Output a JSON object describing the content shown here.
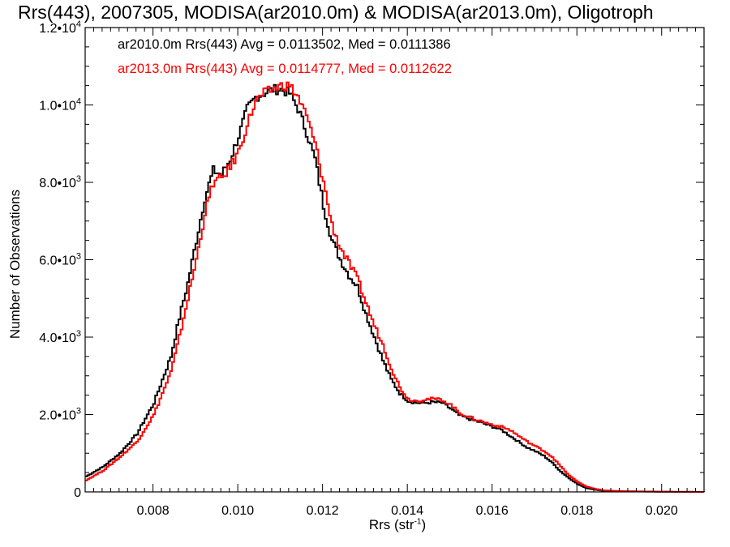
{
  "chart_data": {
    "type": "line",
    "title": "Rrs(443), 2007305, MODISA(ar2010.0m) & MODISA(ar2013.0m), Oligotroph",
    "xlabel": "Rrs (str",
    "xlabel_sup": "-1",
    "xlabel_end": ")",
    "ylabel": "Number of Observations",
    "xlim": [
      0.0064,
      0.021
    ],
    "ylim": [
      0,
      12000
    ],
    "x_ticks": [
      0.008,
      0.01,
      0.012,
      0.014,
      0.016,
      0.018,
      0.02
    ],
    "x_tick_labels": [
      "0.008",
      "0.010",
      "0.012",
      "0.014",
      "0.016",
      "0.018",
      "0.020"
    ],
    "y_ticks": [
      0,
      2000,
      4000,
      6000,
      8000,
      10000,
      12000
    ],
    "y_tick_labels": [
      {
        "mantissa": "0",
        "exp": ""
      },
      {
        "mantissa": "2.0•10",
        "exp": "3"
      },
      {
        "mantissa": "4.0•10",
        "exp": "3"
      },
      {
        "mantissa": "6.0•10",
        "exp": "3"
      },
      {
        "mantissa": "8.0•10",
        "exp": "3"
      },
      {
        "mantissa": "1.0•10",
        "exp": "4"
      },
      {
        "mantissa": "1.2•10",
        "exp": "4"
      }
    ],
    "grid": false,
    "annotations": [
      {
        "text": "ar2010.0m Rrs(443) Avg = 0.0113502, Med = 0.0111386",
        "color": "#000000"
      },
      {
        "text": "ar2013.0m Rrs(443) Avg = 0.0114777, Med = 0.0112622",
        "color": "#ff0000"
      }
    ],
    "series": [
      {
        "name": "ar2010.0m",
        "color": "#000000",
        "x": [
          0.0064,
          0.0068,
          0.0072,
          0.0076,
          0.008,
          0.0084,
          0.0086,
          0.0088,
          0.009,
          0.0092,
          0.0094,
          0.0096,
          0.0098,
          0.01,
          0.0102,
          0.0104,
          0.0106,
          0.0108,
          0.011,
          0.0112,
          0.0114,
          0.0116,
          0.0118,
          0.012,
          0.0122,
          0.0124,
          0.0126,
          0.0128,
          0.013,
          0.0132,
          0.0134,
          0.0136,
          0.0138,
          0.014,
          0.0142,
          0.0144,
          0.0146,
          0.0148,
          0.015,
          0.0152,
          0.0154,
          0.0156,
          0.0158,
          0.016,
          0.0162,
          0.0164,
          0.0166,
          0.0168,
          0.017,
          0.0172,
          0.0174,
          0.0176,
          0.0178,
          0.018,
          0.0182,
          0.0184,
          0.0186,
          0.019,
          0.02,
          0.021
        ],
        "values": [
          400,
          650,
          1000,
          1500,
          2300,
          3500,
          4500,
          5400,
          6500,
          7600,
          8300,
          8200,
          8600,
          9200,
          9900,
          10200,
          10300,
          10400,
          10400,
          10300,
          9900,
          9300,
          8600,
          7400,
          6500,
          6000,
          5600,
          5300,
          4600,
          4000,
          3400,
          2900,
          2550,
          2350,
          2300,
          2300,
          2320,
          2300,
          2150,
          1980,
          1900,
          1830,
          1760,
          1680,
          1600,
          1450,
          1300,
          1150,
          1050,
          930,
          750,
          520,
          350,
          200,
          100,
          60,
          30,
          15,
          5,
          0
        ]
      },
      {
        "name": "ar2013.0m",
        "color": "#ff0000",
        "x": [
          0.0064,
          0.0068,
          0.0072,
          0.0076,
          0.008,
          0.0084,
          0.0086,
          0.0088,
          0.009,
          0.0092,
          0.0094,
          0.0096,
          0.0098,
          0.01,
          0.0102,
          0.0104,
          0.0106,
          0.0108,
          0.011,
          0.0112,
          0.0114,
          0.0116,
          0.0118,
          0.012,
          0.0122,
          0.0124,
          0.0126,
          0.0128,
          0.013,
          0.0132,
          0.0134,
          0.0136,
          0.0138,
          0.014,
          0.0142,
          0.0144,
          0.0146,
          0.0148,
          0.015,
          0.0152,
          0.0154,
          0.0156,
          0.0158,
          0.016,
          0.0162,
          0.0164,
          0.0166,
          0.0168,
          0.017,
          0.0172,
          0.0174,
          0.0176,
          0.0178,
          0.018,
          0.0182,
          0.0184,
          0.0186,
          0.019,
          0.02,
          0.021
        ],
        "values": [
          300,
          550,
          900,
          1300,
          2000,
          3100,
          4000,
          5000,
          6000,
          7200,
          8000,
          8100,
          8400,
          8800,
          9500,
          10100,
          10300,
          10400,
          10500,
          10500,
          10200,
          9700,
          9000,
          8000,
          6900,
          6300,
          5900,
          5500,
          4900,
          4300,
          3800,
          3200,
          2700,
          2400,
          2350,
          2400,
          2400,
          2380,
          2250,
          2050,
          1950,
          1870,
          1800,
          1730,
          1680,
          1600,
          1450,
          1300,
          1180,
          1060,
          900,
          650,
          420,
          260,
          140,
          80,
          40,
          20,
          5,
          0
        ]
      }
    ]
  }
}
